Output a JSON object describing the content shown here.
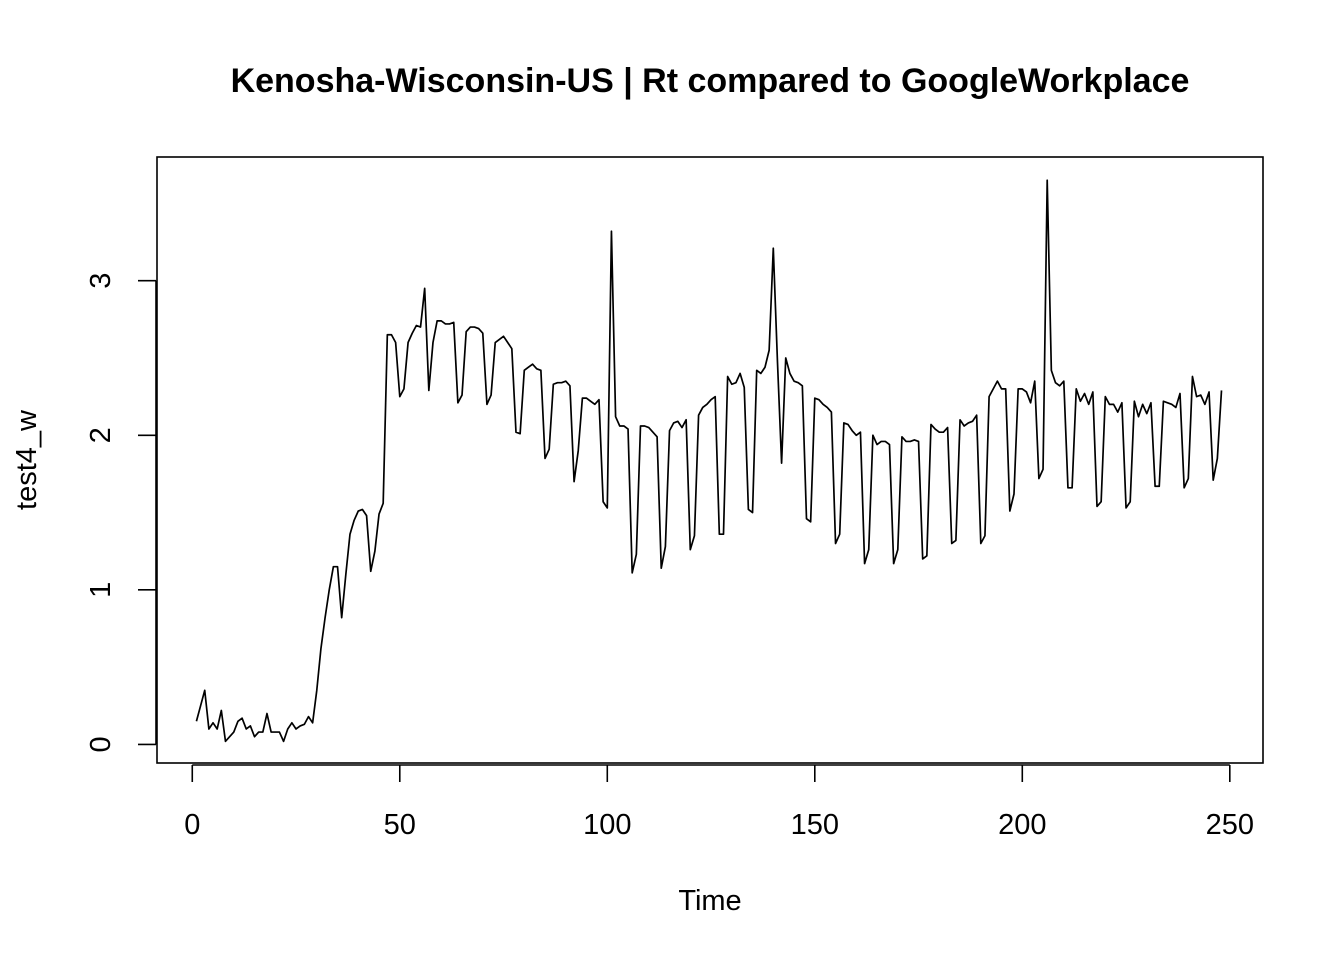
{
  "chart_data": {
    "type": "line",
    "title": "Kenosha-Wisconsin-US | Rt compared to GoogleWorkplace",
    "xlabel": "Time",
    "ylabel": "test4_w",
    "xlim": [
      -8.5,
      258
    ],
    "ylim": [
      -0.12,
      3.8
    ],
    "x_ticks": [
      0,
      50,
      100,
      150,
      200,
      250
    ],
    "y_ticks": [
      0,
      1,
      2,
      3
    ],
    "grid": false,
    "legend": "none",
    "series": [
      {
        "color": "#000000",
        "x_start": 1,
        "values": [
          0.15,
          0.25,
          0.35,
          0.1,
          0.14,
          0.1,
          0.22,
          0.02,
          0.05,
          0.08,
          0.15,
          0.17,
          0.1,
          0.12,
          0.05,
          0.08,
          0.08,
          0.2,
          0.08,
          0.08,
          0.08,
          0.02,
          0.1,
          0.14,
          0.1,
          0.12,
          0.13,
          0.18,
          0.14,
          0.35,
          0.62,
          0.82,
          1.0,
          1.15,
          1.15,
          0.82,
          1.1,
          1.36,
          1.45,
          1.51,
          1.52,
          1.48,
          1.12,
          1.25,
          1.49,
          1.56,
          2.65,
          2.65,
          2.6,
          2.25,
          2.3,
          2.6,
          2.66,
          2.71,
          2.7,
          2.95,
          2.29,
          2.6,
          2.74,
          2.74,
          2.72,
          2.72,
          2.73,
          2.21,
          2.26,
          2.67,
          2.7,
          2.7,
          2.69,
          2.66,
          2.2,
          2.26,
          2.6,
          2.62,
          2.64,
          2.6,
          2.56,
          2.02,
          2.01,
          2.42,
          2.44,
          2.46,
          2.43,
          2.42,
          1.85,
          1.91,
          2.33,
          2.34,
          2.34,
          2.35,
          2.32,
          1.7,
          1.9,
          2.24,
          2.24,
          2.22,
          2.2,
          2.23,
          1.57,
          1.53,
          3.32,
          2.12,
          2.06,
          2.06,
          2.04,
          1.11,
          1.23,
          2.06,
          2.06,
          2.05,
          2.02,
          1.99,
          1.14,
          1.28,
          2.03,
          2.08,
          2.09,
          2.05,
          2.1,
          1.26,
          1.35,
          2.13,
          2.18,
          2.2,
          2.23,
          2.25,
          1.36,
          1.36,
          2.38,
          2.33,
          2.34,
          2.4,
          2.31,
          1.52,
          1.5,
          2.42,
          2.4,
          2.44,
          2.55,
          3.21,
          2.48,
          1.82,
          2.5,
          2.4,
          2.35,
          2.34,
          2.32,
          1.46,
          1.44,
          2.24,
          2.23,
          2.2,
          2.18,
          2.15,
          1.3,
          1.36,
          2.08,
          2.07,
          2.03,
          2.0,
          2.02,
          1.17,
          1.26,
          2.0,
          1.94,
          1.96,
          1.96,
          1.94,
          1.17,
          1.26,
          1.99,
          1.96,
          1.96,
          1.97,
          1.96,
          1.2,
          1.22,
          2.07,
          2.04,
          2.02,
          2.02,
          2.05,
          1.3,
          1.32,
          2.1,
          2.06,
          2.08,
          2.09,
          2.13,
          1.3,
          1.35,
          2.25,
          2.3,
          2.35,
          2.3,
          2.3,
          1.51,
          1.62,
          2.3,
          2.3,
          2.28,
          2.21,
          2.35,
          1.72,
          1.78,
          3.65,
          2.42,
          2.34,
          2.32,
          2.35,
          1.66,
          1.66,
          2.3,
          2.22,
          2.27,
          2.2,
          2.28,
          1.54,
          1.57,
          2.25,
          2.2,
          2.2,
          2.15,
          2.21,
          1.53,
          1.57,
          2.22,
          2.12,
          2.2,
          2.14,
          2.21,
          1.67,
          1.67,
          2.22,
          2.21,
          2.2,
          2.18,
          2.27,
          1.66,
          1.72,
          2.38,
          2.25,
          2.26,
          2.2,
          2.28,
          1.71,
          1.85,
          2.29
        ]
      }
    ]
  }
}
